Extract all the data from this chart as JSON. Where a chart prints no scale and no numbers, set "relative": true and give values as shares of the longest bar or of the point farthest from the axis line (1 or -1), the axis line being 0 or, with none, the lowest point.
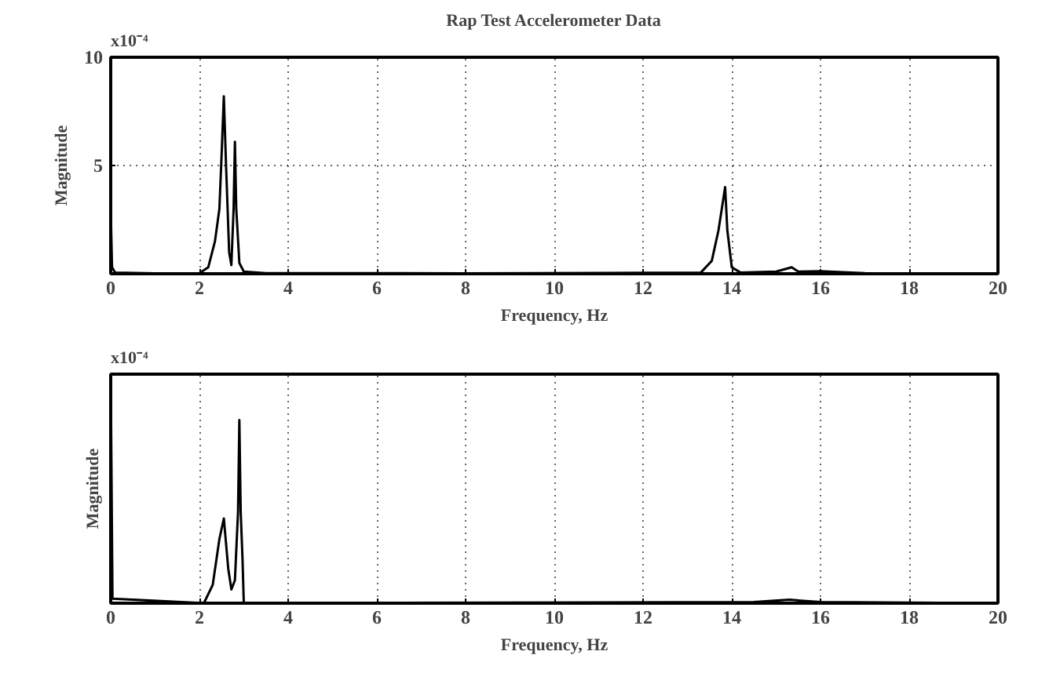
{
  "chart_data": [
    {
      "type": "line",
      "title": "Rap Test Accelerometer Data",
      "xlabel": "Frequency, Hz",
      "ylabel": "Magnitude",
      "annotations": [
        "x10⁻⁴"
      ],
      "xlim": [
        0,
        20
      ],
      "xticks": [
        0,
        2,
        4,
        6,
        8,
        10,
        12,
        14,
        16,
        18,
        20
      ],
      "ylim": [
        0,
        10
      ],
      "yticks": [
        5,
        10
      ],
      "grid": true,
      "series": [
        {
          "color": "#000000",
          "x": [
            0,
            0.03,
            0.1,
            1.0,
            2.0,
            2.2,
            2.35,
            2.45,
            2.5,
            2.55,
            2.6,
            2.67,
            2.72,
            2.77,
            2.8,
            2.83,
            2.9,
            3.0,
            3.5,
            8,
            13.3,
            13.55,
            13.7,
            13.85,
            13.9,
            14.0,
            14.2,
            15.0,
            15.35,
            15.5,
            16,
            17,
            20
          ],
          "values": [
            3.0,
            0.3,
            0.05,
            0.02,
            0.03,
            0.3,
            1.5,
            3.0,
            5.5,
            8.2,
            5.0,
            1.0,
            0.4,
            3.0,
            6.1,
            3.0,
            0.5,
            0.1,
            0.03,
            0.02,
            0.05,
            0.6,
            2.0,
            4.0,
            2.0,
            0.3,
            0.05,
            0.1,
            0.3,
            0.1,
            0.12,
            0.03,
            0.02
          ]
        }
      ]
    },
    {
      "type": "line",
      "xlabel": "Frequency, Hz",
      "ylabel": "Magnitude",
      "annotations": [
        "x10⁻⁴"
      ],
      "xlim": [
        0,
        20
      ],
      "xticks": [
        0,
        2,
        4,
        6,
        8,
        10,
        12,
        14,
        16,
        18,
        20
      ],
      "relative": true,
      "tick_labels": "x",
      "grid": "x",
      "series": [
        {
          "color": "#000000",
          "x": [
            0,
            0.04,
            2.1,
            2.3,
            2.45,
            2.55,
            2.65,
            2.72,
            2.8,
            2.87,
            2.9,
            2.93,
            2.97,
            3.0,
            14.5,
            15.3,
            16,
            20
          ],
          "values": [
            1,
            0.02,
            0,
            0.08,
            0.28,
            0.37,
            0.15,
            0.06,
            0.1,
            0.4,
            0.8,
            0.4,
            0.2,
            0,
            0.005,
            0.015,
            0.005,
            0
          ]
        }
      ]
    }
  ]
}
